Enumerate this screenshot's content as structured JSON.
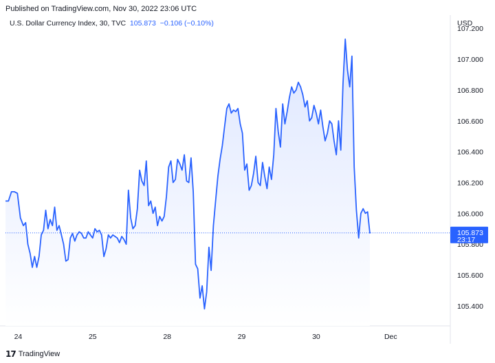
{
  "header": {
    "published": "Published on TradingView.com, Nov 30, 2022 23:06 UTC"
  },
  "legend": {
    "symbol": "U.S. Dollar Currency Index, 30, TVC",
    "last": "105.873",
    "change": "−0.106 (−0.10%)"
  },
  "currency": "USD",
  "price_tag": {
    "value": "105.873",
    "countdown": "23:17",
    "color": "#2962ff"
  },
  "footer": {
    "brand": "TradingView",
    "logo_icon": "tradingview-logo-icon"
  },
  "colors": {
    "line": "#2962ff",
    "area_top": "#dde6ff",
    "area_bottom": "#ffffff"
  },
  "chart_data": {
    "type": "area",
    "title": "U.S. Dollar Currency Index, 30, TVC",
    "xlabel": "",
    "ylabel": "",
    "ylim": [
      105.27,
      107.25
    ],
    "y_ticks": [
      105.4,
      105.6,
      105.8,
      106.0,
      106.2,
      106.4,
      106.6,
      106.8,
      107.0,
      107.2
    ],
    "y_tick_labels": [
      "105.400",
      "105.600",
      "105.800",
      "106.000",
      "106.200",
      "106.400",
      "106.600",
      "106.800",
      "107.000",
      "107.200"
    ],
    "x_ticks": [
      {
        "pos": 1.7,
        "label": "24"
      },
      {
        "pos": 11.7,
        "label": "25"
      },
      {
        "pos": 21.7,
        "label": "28"
      },
      {
        "pos": 31.7,
        "label": "29"
      },
      {
        "pos": 41.7,
        "label": "30"
      },
      {
        "pos": 51.7,
        "label": "Dec"
      }
    ],
    "xlim": [
      0,
      59.7
    ],
    "last_value": 105.873,
    "grid": false,
    "series": [
      {
        "points": [
          [
            0.0,
            106.08
          ],
          [
            0.4,
            106.08
          ],
          [
            0.8,
            106.14
          ],
          [
            1.2,
            106.14
          ],
          [
            1.6,
            106.13
          ],
          [
            2.0,
            105.97
          ],
          [
            2.4,
            105.92
          ],
          [
            2.7,
            105.94
          ],
          [
            3.0,
            105.8
          ],
          [
            3.3,
            105.74
          ],
          [
            3.6,
            105.65
          ],
          [
            3.9,
            105.72
          ],
          [
            4.2,
            105.65
          ],
          [
            4.5,
            105.72
          ],
          [
            4.8,
            105.86
          ],
          [
            5.1,
            105.89
          ],
          [
            5.4,
            106.02
          ],
          [
            5.7,
            105.9
          ],
          [
            6.0,
            105.96
          ],
          [
            6.3,
            105.92
          ],
          [
            6.6,
            106.04
          ],
          [
            6.9,
            105.89
          ],
          [
            7.2,
            105.92
          ],
          [
            7.5,
            105.86
          ],
          [
            7.8,
            105.8
          ],
          [
            8.1,
            105.69
          ],
          [
            8.4,
            105.7
          ],
          [
            8.7,
            105.84
          ],
          [
            9.0,
            105.87
          ],
          [
            9.3,
            105.82
          ],
          [
            9.6,
            105.86
          ],
          [
            9.9,
            105.88
          ],
          [
            10.2,
            105.87
          ],
          [
            10.5,
            105.84
          ],
          [
            10.8,
            105.84
          ],
          [
            11.1,
            105.88
          ],
          [
            11.4,
            105.86
          ],
          [
            11.7,
            105.84
          ],
          [
            12.0,
            105.9
          ],
          [
            12.3,
            105.88
          ],
          [
            12.6,
            105.89
          ],
          [
            12.9,
            105.86
          ],
          [
            13.2,
            105.72
          ],
          [
            13.5,
            105.77
          ],
          [
            13.8,
            105.86
          ],
          [
            14.1,
            105.84
          ],
          [
            14.4,
            105.86
          ],
          [
            14.7,
            105.85
          ],
          [
            15.0,
            105.84
          ],
          [
            15.3,
            105.81
          ],
          [
            15.6,
            105.85
          ],
          [
            15.9,
            105.83
          ],
          [
            16.2,
            105.8
          ],
          [
            16.5,
            106.15
          ],
          [
            16.8,
            105.97
          ],
          [
            17.1,
            105.9
          ],
          [
            17.4,
            105.92
          ],
          [
            17.7,
            106.03
          ],
          [
            18.0,
            106.28
          ],
          [
            18.3,
            106.21
          ],
          [
            18.6,
            106.18
          ],
          [
            18.9,
            106.34
          ],
          [
            19.2,
            106.05
          ],
          [
            19.5,
            106.08
          ],
          [
            19.8,
            106.0
          ],
          [
            20.1,
            106.04
          ],
          [
            20.4,
            105.92
          ],
          [
            20.7,
            105.98
          ],
          [
            21.0,
            105.95
          ],
          [
            21.3,
            105.98
          ],
          [
            21.6,
            106.11
          ],
          [
            21.9,
            106.3
          ],
          [
            22.2,
            106.34
          ],
          [
            22.5,
            106.2
          ],
          [
            22.8,
            106.22
          ],
          [
            23.1,
            106.35
          ],
          [
            23.4,
            106.32
          ],
          [
            23.7,
            106.28
          ],
          [
            24.0,
            106.38
          ],
          [
            24.3,
            106.21
          ],
          [
            24.6,
            106.2
          ],
          [
            24.9,
            106.36
          ],
          [
            25.2,
            106.14
          ],
          [
            25.5,
            105.67
          ],
          [
            25.8,
            105.64
          ],
          [
            26.1,
            105.45
          ],
          [
            26.4,
            105.53
          ],
          [
            26.7,
            105.38
          ],
          [
            27.0,
            105.49
          ],
          [
            27.3,
            105.78
          ],
          [
            27.6,
            105.63
          ],
          [
            27.9,
            105.92
          ],
          [
            28.2,
            106.08
          ],
          [
            28.5,
            106.24
          ],
          [
            28.8,
            106.35
          ],
          [
            29.1,
            106.44
          ],
          [
            29.4,
            106.56
          ],
          [
            29.7,
            106.68
          ],
          [
            30.0,
            106.71
          ],
          [
            30.3,
            106.65
          ],
          [
            30.6,
            106.67
          ],
          [
            30.9,
            106.66
          ],
          [
            31.2,
            106.68
          ],
          [
            31.5,
            106.58
          ],
          [
            31.8,
            106.52
          ],
          [
            32.1,
            106.28
          ],
          [
            32.4,
            106.32
          ],
          [
            32.7,
            106.15
          ],
          [
            33.0,
            106.18
          ],
          [
            33.3,
            106.26
          ],
          [
            33.6,
            106.37
          ],
          [
            33.9,
            106.2
          ],
          [
            34.2,
            106.18
          ],
          [
            34.5,
            106.33
          ],
          [
            34.8,
            106.24
          ],
          [
            35.1,
            106.16
          ],
          [
            35.4,
            106.3
          ],
          [
            35.7,
            106.22
          ],
          [
            36.0,
            106.38
          ],
          [
            36.3,
            106.68
          ],
          [
            36.6,
            106.53
          ],
          [
            36.9,
            106.43
          ],
          [
            37.2,
            106.71
          ],
          [
            37.5,
            106.58
          ],
          [
            37.8,
            106.66
          ],
          [
            38.1,
            106.75
          ],
          [
            38.4,
            106.82
          ],
          [
            38.7,
            106.78
          ],
          [
            39.0,
            106.8
          ],
          [
            39.3,
            106.85
          ],
          [
            39.6,
            106.82
          ],
          [
            39.9,
            106.77
          ],
          [
            40.2,
            106.69
          ],
          [
            40.5,
            106.73
          ],
          [
            40.8,
            106.6
          ],
          [
            41.1,
            106.62
          ],
          [
            41.4,
            106.7
          ],
          [
            41.7,
            106.65
          ],
          [
            42.0,
            106.58
          ],
          [
            42.3,
            106.67
          ],
          [
            42.6,
            106.56
          ],
          [
            42.9,
            106.47
          ],
          [
            43.2,
            106.52
          ],
          [
            43.5,
            106.6
          ],
          [
            43.8,
            106.58
          ],
          [
            44.1,
            106.47
          ],
          [
            44.4,
            106.38
          ],
          [
            44.7,
            106.6
          ],
          [
            45.0,
            106.41
          ],
          [
            45.3,
            106.84
          ],
          [
            45.6,
            107.13
          ],
          [
            45.9,
            106.93
          ],
          [
            46.2,
            106.82
          ],
          [
            46.5,
            107.02
          ],
          [
            46.8,
            106.3
          ],
          [
            47.1,
            106.02
          ],
          [
            47.4,
            105.84
          ],
          [
            47.7,
            106.0
          ],
          [
            48.0,
            106.03
          ],
          [
            48.3,
            106.0
          ],
          [
            48.6,
            106.01
          ],
          [
            48.9,
            105.87
          ]
        ]
      }
    ]
  }
}
